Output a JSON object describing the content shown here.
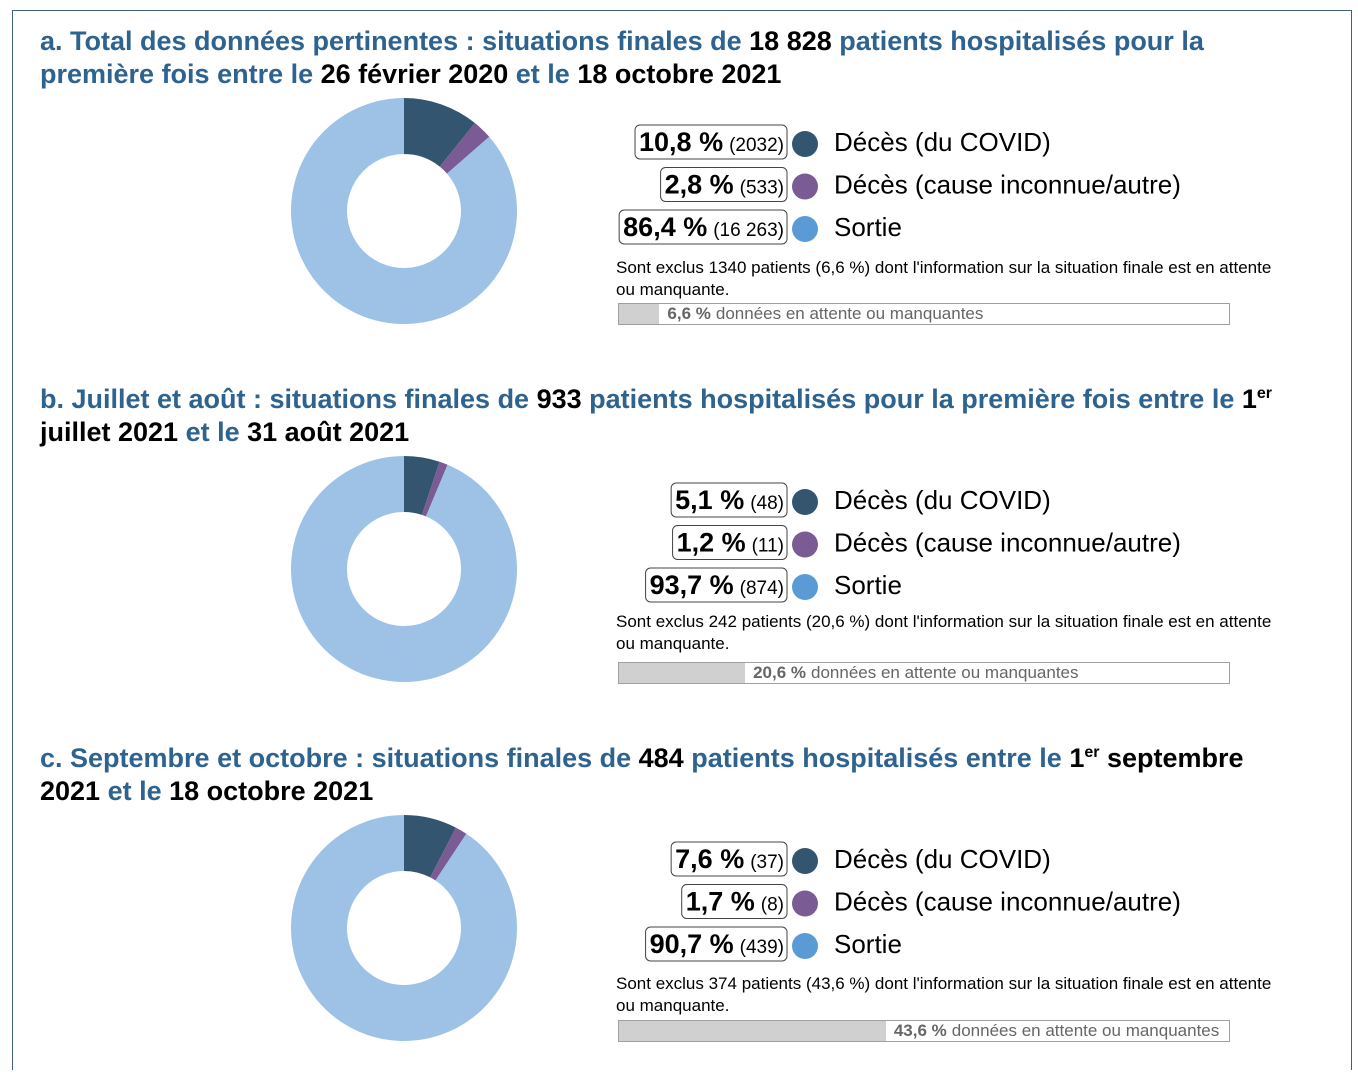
{
  "chart_data": [
    {
      "type": "donut",
      "title_parts": [
        {
          "text": "a. Total des données pertinentes : situations finales de ",
          "bold": false
        },
        {
          "text": "18 828",
          "bold": true
        },
        {
          "text": " patients hospitalisés pour la première fois entre le ",
          "bold": false
        },
        {
          "text": "26 février 2020",
          "bold": true
        },
        {
          "text": " et le ",
          "bold": false
        },
        {
          "text": "18 octobre 2021",
          "bold": true
        }
      ],
      "categories": [
        "Décès (du COVID)",
        "Décès (cause inconnue/autre)",
        "Sortie"
      ],
      "values": [
        10.8,
        2.8,
        86.4
      ],
      "value_labels": [
        "10,8 %",
        "2,8 %",
        "86,4 %"
      ],
      "count_labels": [
        "(2032)",
        "(533)",
        "(16 263)"
      ],
      "colors": [
        "#34556f",
        "#7a5b94",
        "#9dc2e6"
      ],
      "legend_colors": [
        "#34556f",
        "#7a5b94",
        "#5b9bd5"
      ],
      "note": "Sont exclus 1340 patients (6,6 %) dont l'information sur la situation finale est en attente ou manquante.",
      "missing": {
        "value": 6.6,
        "label": "6,6 %",
        "text": "données en attente ou manquantes"
      }
    },
    {
      "type": "donut",
      "title_parts": [
        {
          "text": "b. Juillet et août : situations finales de ",
          "bold": false
        },
        {
          "text": "933",
          "bold": true
        },
        {
          "text": " patients hospitalisés pour la première fois entre le ",
          "bold": false
        },
        {
          "text": "1",
          "bold": true
        },
        {
          "text": "er",
          "bold": true,
          "sup": true
        },
        {
          "text": " juillet 2021",
          "bold": true
        },
        {
          "text": " et le ",
          "bold": false
        },
        {
          "text": "31 août 2021",
          "bold": true
        }
      ],
      "categories": [
        "Décès (du COVID)",
        "Décès (cause inconnue/autre)",
        "Sortie"
      ],
      "values": [
        5.1,
        1.2,
        93.7
      ],
      "value_labels": [
        "5,1 %",
        "1,2 %",
        "93,7 %"
      ],
      "count_labels": [
        "(48)",
        "(11)",
        "(874)"
      ],
      "colors": [
        "#34556f",
        "#7a5b94",
        "#9dc2e6"
      ],
      "legend_colors": [
        "#34556f",
        "#7a5b94",
        "#5b9bd5"
      ],
      "note": "Sont exclus 242 patients (20,6 %) dont l'information sur la situation finale est en attente ou manquante.",
      "missing": {
        "value": 20.6,
        "label": "20,6 %",
        "text": "données en attente ou manquantes"
      }
    },
    {
      "type": "donut",
      "title_parts": [
        {
          "text": "c. Septembre et octobre : situations finales de ",
          "bold": false
        },
        {
          "text": "484",
          "bold": true
        },
        {
          "text": " patients hospitalisés entre le ",
          "bold": false
        },
        {
          "text": "1",
          "bold": true
        },
        {
          "text": "er",
          "bold": true,
          "sup": true
        },
        {
          "text": " septembre 2021",
          "bold": true
        },
        {
          "text": " et le ",
          "bold": false
        },
        {
          "text": "18 octobre 2021",
          "bold": true
        }
      ],
      "categories": [
        "Décès (du COVID)",
        "Décès (cause inconnue/autre)",
        "Sortie"
      ],
      "values": [
        7.6,
        1.7,
        90.7
      ],
      "value_labels": [
        "7,6 %",
        "1,7 %",
        "90,7 %"
      ],
      "count_labels": [
        "(37)",
        "(8)",
        "(439)"
      ],
      "colors": [
        "#34556f",
        "#7a5b94",
        "#9dc2e6"
      ],
      "legend_colors": [
        "#34556f",
        "#7a5b94",
        "#5b9bd5"
      ],
      "note": "Sont exclus 374 patients (43,6 %) dont l'information sur la situation finale est en attente ou manquante.",
      "missing": {
        "value": 43.6,
        "label": "43,6 %",
        "text": "données en attente ou manquantes"
      }
    }
  ]
}
